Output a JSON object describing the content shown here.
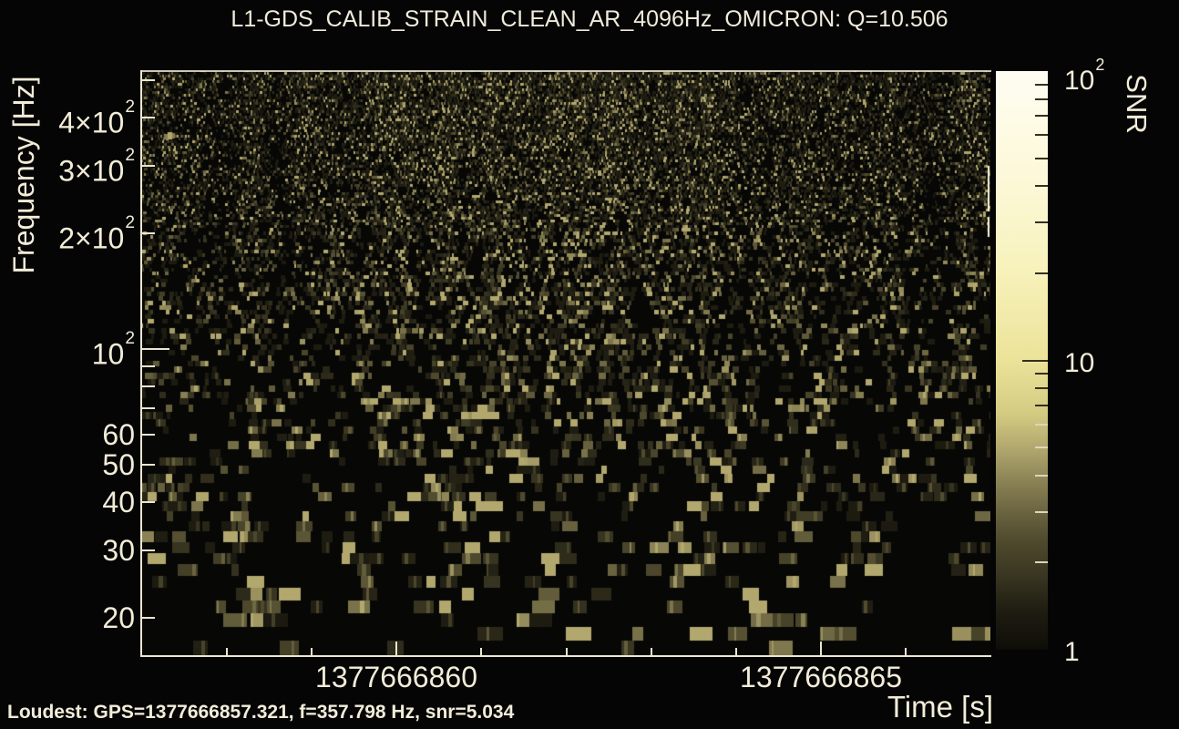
{
  "title": "L1-GDS_CALIB_STRAIN_CLEAN_AR_4096Hz_OMICRON: Q=10.506",
  "colors": {
    "background": "#050505",
    "text": "#f2ecd8",
    "frame": "#ece6d0",
    "tick_on_pale": "#33301f",
    "tick_on_dark": "#ddd6b8"
  },
  "axes": {
    "x": {
      "title": "Time [s]",
      "scale": "linear",
      "range_gps": [
        1377666857,
        1377666867
      ],
      "minor_tick_step_s": 1,
      "major_ticks": [
        {
          "gps": 1377666860,
          "label": "1377666860"
        },
        {
          "gps": 1377666865,
          "label": "1377666865"
        }
      ]
    },
    "y": {
      "title": "Frequency [Hz]",
      "scale": "log",
      "range_hz": [
        16,
        528
      ],
      "ticks": [
        {
          "f": 20,
          "label": "20"
        },
        {
          "f": 30,
          "label": "30"
        },
        {
          "f": 40,
          "label": "40"
        },
        {
          "f": 50,
          "label": "50"
        },
        {
          "f": 60,
          "label": "60"
        },
        {
          "f": 70
        },
        {
          "f": 80
        },
        {
          "f": 90
        },
        {
          "f": 100,
          "label": "10",
          "sup": "2",
          "decade": true
        },
        {
          "f": 200,
          "label": "2×10",
          "sup": "2"
        },
        {
          "f": 300,
          "label": "3×10",
          "sup": "2"
        },
        {
          "f": 400,
          "label": "4×10",
          "sup": "2"
        },
        {
          "f": 500
        }
      ]
    }
  },
  "colorbar": {
    "title": "SNR",
    "scale": "log",
    "range": [
      1,
      100
    ],
    "labeled_ticks": [
      {
        "v": 1,
        "label": "1"
      },
      {
        "v": 10,
        "label": "10"
      },
      {
        "v": 100,
        "label": "10",
        "sup": "2"
      }
    ],
    "minor_ticks": [
      2,
      3,
      4,
      5,
      6,
      7,
      8,
      9,
      20,
      30,
      40,
      50,
      60,
      70,
      80,
      90
    ],
    "gradient_stops": [
      [
        0.0,
        "#0e0d08"
      ],
      [
        0.07,
        "#201e12"
      ],
      [
        0.13,
        "#3a3722"
      ],
      [
        0.19,
        "#504b2e"
      ],
      [
        0.24,
        "#6b6541"
      ],
      [
        0.29,
        "#8a8254"
      ],
      [
        0.34,
        "#aca26b"
      ],
      [
        0.41,
        "#d5cc83"
      ],
      [
        0.5,
        "#ebe399"
      ],
      [
        0.65,
        "#f7f1ba"
      ],
      [
        0.8,
        "#fcf8d6"
      ],
      [
        1.0,
        "#fffdf2"
      ]
    ]
  },
  "footer": {
    "loudest": "Loudest: GPS=1377666857.321, f=357.798 Hz, snr=5.034"
  },
  "chart_data": {
    "type": "heatmap",
    "title": "L1-GDS_CALIB_STRAIN_CLEAN_AR_4096Hz_OMICRON: Q=10.506",
    "channel": "L1-GDS_CALIB_STRAIN_CLEAN_AR_4096Hz_OMICRON",
    "q": 10.506,
    "xlabel": "Time [s]",
    "ylabel": "Frequency [Hz]",
    "zlabel": "SNR",
    "x_range_gps": [
      1377666857,
      1377666867
    ],
    "y_range_hz": [
      16,
      528
    ],
    "y_scale": "log",
    "snr_range": [
      1,
      100
    ],
    "snr_scale": "log",
    "grid": false,
    "loudest": {
      "gps": 1377666857.321,
      "frequency_hz": 357.798,
      "snr": 5.034
    },
    "texture": {
      "seed": 90406,
      "max_tile_snr": 5.034,
      "description": "dense dark-olive vertical Q-tile speckle on black; tiles grow wider and taller toward low frequency; SNR of visible tiles stays below ~5"
    }
  }
}
